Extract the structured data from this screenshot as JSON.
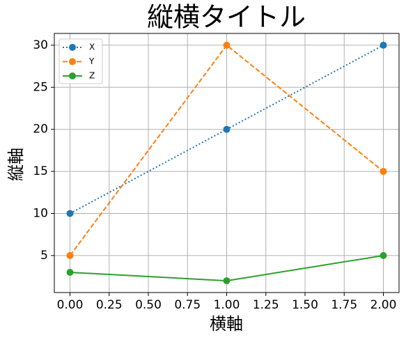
{
  "chart_data": {
    "type": "line",
    "title": "縦横タイトル",
    "x_label": "横軸",
    "y_label": "縦軸",
    "x": [
      0,
      1,
      2
    ],
    "series": [
      {
        "name": "X",
        "color": "#1f77b4",
        "linestyle": "dotted",
        "values": [
          10,
          20,
          30
        ]
      },
      {
        "name": "Y",
        "color": "#ff7f0e",
        "linestyle": "dashed",
        "values": [
          5,
          30,
          15
        ]
      },
      {
        "name": "Z",
        "color": "#2ca02c",
        "linestyle": "solid",
        "values": [
          3,
          2,
          5
        ]
      }
    ],
    "xlim": [
      -0.1,
      2.1
    ],
    "xticks": [
      {
        "value": 0,
        "label": "0.00"
      },
      {
        "value": 0.25,
        "label": "0.25"
      },
      {
        "value": 0.5,
        "label": "0.50"
      },
      {
        "value": 0.75,
        "label": "0.75"
      },
      {
        "value": 1,
        "label": "1.00"
      },
      {
        "value": 1.25,
        "label": "1.25"
      },
      {
        "value": 1.5,
        "label": "1.50"
      },
      {
        "value": 1.75,
        "label": "1.75"
      },
      {
        "value": 2,
        "label": "2.00"
      }
    ],
    "ylim": [
      0.6,
      31.4
    ],
    "yticks": [
      5,
      10,
      15,
      20,
      25,
      30
    ],
    "grid": true,
    "legend": "upper-left"
  }
}
